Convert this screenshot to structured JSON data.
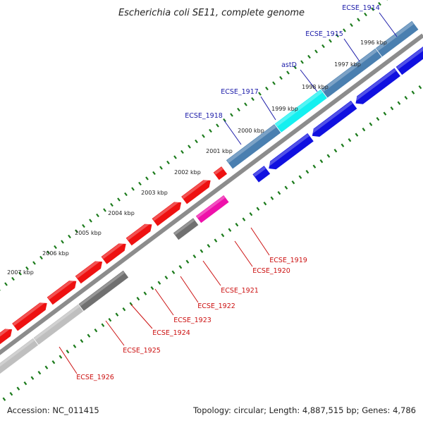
{
  "title": "Escherichia coli SE11, complete genome",
  "footer": {
    "accession": "Accession: NC_011415",
    "summary": "Topology: circular; Length: 4,887,515 bp; Genes: 4,786"
  },
  "colors": {
    "background": "#ffffff",
    "backbone": "#8c8c8c",
    "tick": "#1a7a1a",
    "label_forward": "#1a1aa8",
    "label_reverse": "#cc1111",
    "gene_blue": "#1010e0",
    "gene_steel": "#4a7fb0",
    "gene_cyan": "#14f0f0",
    "gene_red": "#ee1111",
    "gene_gray": "#707070",
    "gene_lightgray": "#bfbfbf",
    "gene_magenta": "#ee11aa"
  },
  "ticks": [
    "1996 kbp",
    "1997 kbp",
    "1998 kbp",
    "1999 kbp",
    "2000 kbp",
    "2001 kbp",
    "2002 kbp",
    "2003 kbp",
    "2004 kbp",
    "2005 kbp",
    "2006 kbp",
    "2007 kbp"
  ],
  "genes_forward": [
    "ECSE_1914",
    "ECSE_1915",
    "astD",
    "ECSE_1917",
    "ECSE_1918"
  ],
  "genes_reverse": [
    "ECSE_1919",
    "ECSE_1920",
    "ECSE_1921",
    "ECSE_1922",
    "ECSE_1923",
    "ECSE_1924",
    "ECSE_1925",
    "ECSE_1926"
  ]
}
